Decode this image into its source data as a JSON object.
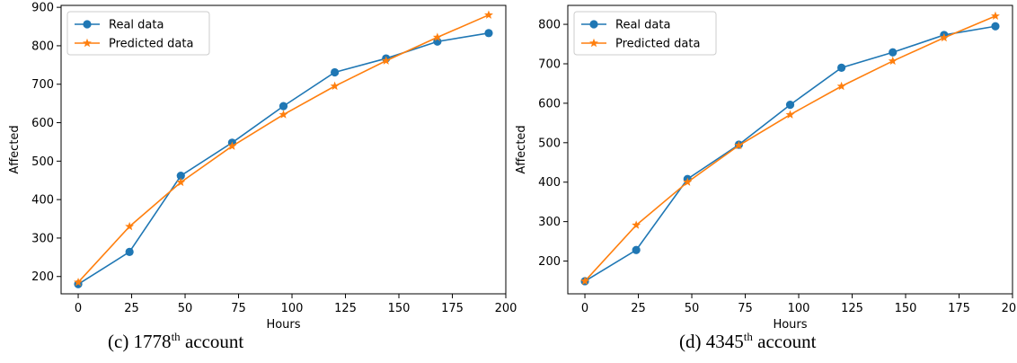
{
  "colors": {
    "real": "#1f77b4",
    "predicted": "#ff7f0e"
  },
  "chart_data": [
    {
      "type": "line",
      "xlabel": "Hours",
      "ylabel": "Affected",
      "xlim": [
        -8,
        200
      ],
      "ylim": [
        155,
        905
      ],
      "xticks": [
        0,
        25,
        50,
        75,
        100,
        125,
        150,
        175,
        200
      ],
      "yticks": [
        200,
        300,
        400,
        500,
        600,
        700,
        800,
        900
      ],
      "legend": "top-left",
      "grid": false,
      "x": [
        0,
        24,
        48,
        72,
        96,
        120,
        144,
        168,
        192
      ],
      "series": [
        {
          "name": "Real data",
          "marker": "circle",
          "values": [
            180,
            264,
            462,
            548,
            643,
            731,
            767,
            811,
            833
          ]
        },
        {
          "name": "Predicted data",
          "marker": "star",
          "values": [
            185,
            330,
            445,
            539,
            621,
            695,
            761,
            822,
            880
          ]
        }
      ],
      "caption": {
        "prefix": "(c) 1778",
        "sup": "th",
        "suffix": " account"
      }
    },
    {
      "type": "line",
      "xlabel": "Hours",
      "ylabel": "Affected",
      "xlim": [
        -8,
        200
      ],
      "ylim": [
        117,
        848
      ],
      "xticks": [
        0,
        25,
        50,
        75,
        100,
        125,
        150,
        175,
        200
      ],
      "yticks": [
        200,
        300,
        400,
        500,
        600,
        700,
        800
      ],
      "legend": "top-left",
      "grid": false,
      "x": [
        0,
        24,
        48,
        72,
        96,
        120,
        144,
        168,
        192
      ],
      "series": [
        {
          "name": "Real data",
          "marker": "circle",
          "values": [
            149,
            228,
            408,
            495,
            596,
            690,
            729,
            773,
            795
          ]
        },
        {
          "name": "Predicted data",
          "marker": "star",
          "values": [
            149,
            291,
            400,
            493,
            571,
            643,
            707,
            766,
            821
          ]
        }
      ],
      "caption": {
        "prefix": "(d) 4345",
        "sup": "th",
        "suffix": " account"
      }
    }
  ]
}
